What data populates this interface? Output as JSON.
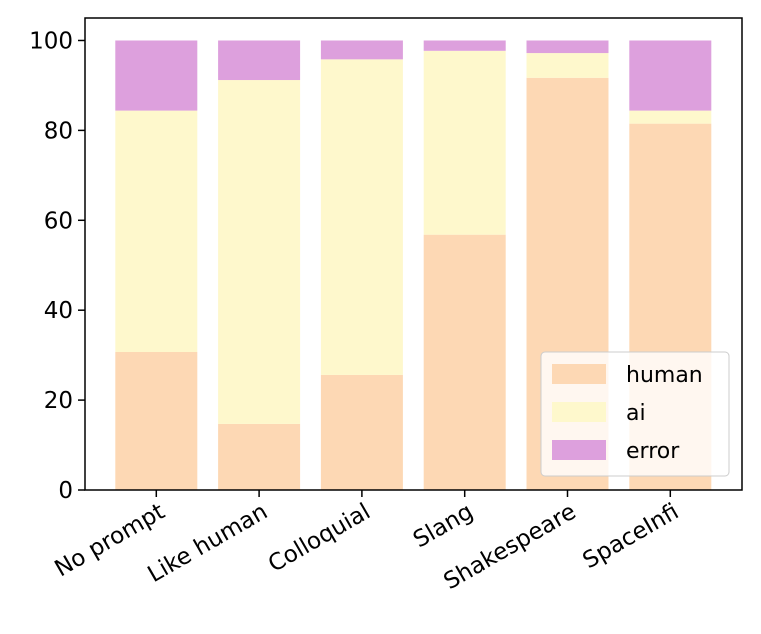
{
  "chart_data": {
    "type": "bar",
    "stacked": true,
    "categories": [
      "No prompt",
      "Like human",
      "Colloquial",
      "Slang",
      "Shakespeare",
      "SpaceInfi"
    ],
    "series": [
      {
        "name": "human",
        "color": "#fdd8b4",
        "values": [
          30.7,
          14.7,
          25.6,
          56.8,
          91.7,
          81.5
        ]
      },
      {
        "name": "ai",
        "color": "#fef8cc",
        "values": [
          53.7,
          76.5,
          70.2,
          40.9,
          5.5,
          2.9
        ]
      },
      {
        "name": "error",
        "color": "#dda0dd",
        "values": [
          15.6,
          8.8,
          4.2,
          2.3,
          2.8,
          15.6
        ]
      }
    ],
    "yticks": [
      0,
      20,
      40,
      60,
      80,
      100
    ],
    "ylim": [
      0,
      105
    ],
    "title": "",
    "xlabel": "",
    "ylabel": "",
    "legend_position": "lower-right"
  }
}
